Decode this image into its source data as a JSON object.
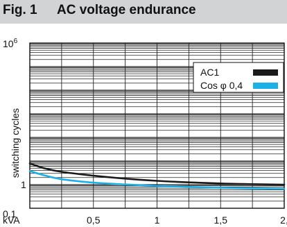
{
  "figure": {
    "label": "Fig. 1",
    "title": "AC voltage endurance"
  },
  "chart_data": {
    "type": "line",
    "xlabel": "kVA",
    "ylabel": "switching cycles",
    "xlim": [
      0,
      2
    ],
    "ylim": [
      0.1,
      1000000
    ],
    "yscale": "log",
    "x_ticks": [
      {
        "value": 0.5,
        "label": "0,5"
      },
      {
        "value": 1,
        "label": "1"
      },
      {
        "value": 1.5,
        "label": "1,5"
      },
      {
        "value": 2,
        "label": "2,"
      }
    ],
    "y_ticks": [
      {
        "value": 1000000,
        "base": "10",
        "exp": "6"
      },
      {
        "value": 1,
        "label": "1"
      },
      {
        "value": 0.1,
        "label": "0,1"
      }
    ],
    "grid": true,
    "legend_position": "top-right",
    "series": [
      {
        "name": "AC1",
        "color": "#1a1a1a",
        "x": [
          0,
          0.1,
          0.25,
          0.5,
          0.75,
          1.0,
          1.25,
          1.5,
          1.75,
          2.0
        ],
        "y": [
          8,
          5.2,
          3.5,
          2.4,
          1.8,
          1.45,
          1.25,
          1.12,
          1.05,
          1.0
        ]
      },
      {
        "name": "Cos φ 0,4",
        "color": "#1ab0e8",
        "x": [
          0,
          0.1,
          0.25,
          0.5,
          0.75,
          1.0,
          1.25,
          1.5,
          1.75,
          2.0
        ],
        "y": [
          3.8,
          2.6,
          1.7,
          1.22,
          1.02,
          0.88,
          0.8,
          0.74,
          0.7,
          0.66
        ]
      }
    ]
  }
}
